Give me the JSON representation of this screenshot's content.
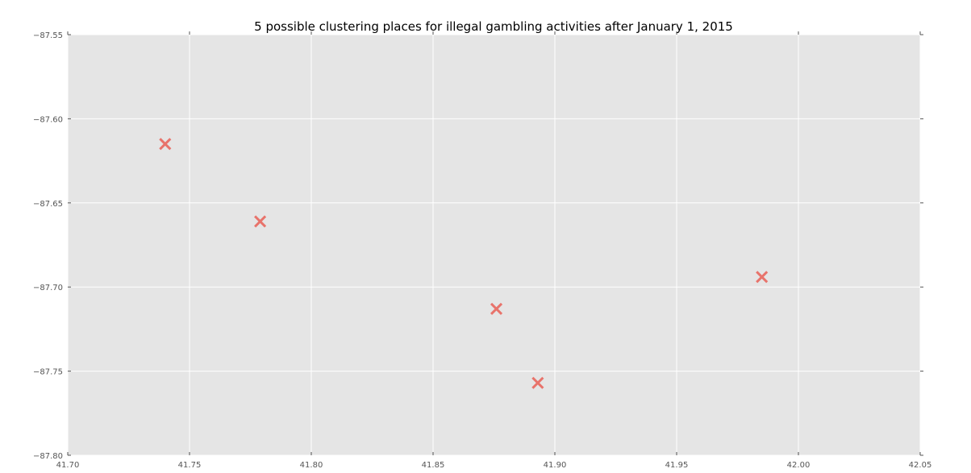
{
  "chart_data": {
    "type": "scatter",
    "title": "5 possible clustering places for illegal gambling activities after January 1, 2015",
    "xlabel": "",
    "ylabel": "",
    "xlim": [
      41.7,
      42.05
    ],
    "ylim": [
      -87.8,
      -87.55
    ],
    "xticks": [
      "41.70",
      "41.75",
      "41.80",
      "41.85",
      "41.90",
      "41.95",
      "42.00",
      "42.05"
    ],
    "yticks": [
      "−87.55",
      "−87.60",
      "−87.65",
      "−87.70",
      "−87.75",
      "−87.80"
    ],
    "xtick_values": [
      41.7,
      41.75,
      41.8,
      41.85,
      41.9,
      41.95,
      42.0,
      42.05
    ],
    "ytick_values": [
      -87.55,
      -87.6,
      -87.65,
      -87.7,
      -87.75,
      -87.8
    ],
    "grid": true,
    "marker": "x",
    "points": [
      {
        "x": 41.74,
        "y": -87.615
      },
      {
        "x": 41.779,
        "y": -87.661
      },
      {
        "x": 41.876,
        "y": -87.713
      },
      {
        "x": 41.893,
        "y": -87.757
      },
      {
        "x": 41.985,
        "y": -87.694
      }
    ],
    "colors": {
      "background": "#e5e5e5",
      "grid": "#ffffff",
      "marker": "#e8736b",
      "tick": "#555555",
      "title": "#000000"
    }
  }
}
